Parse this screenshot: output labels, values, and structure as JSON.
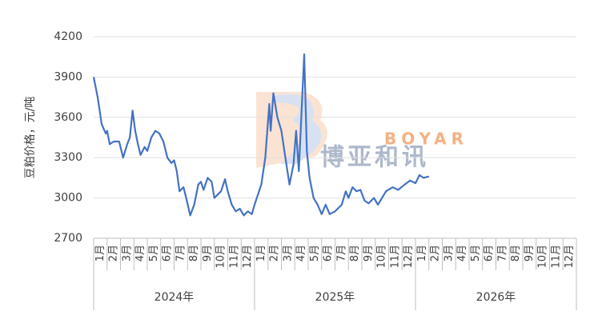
{
  "chart_data": {
    "type": "line",
    "y_label": "豆粕价格，元/吨",
    "watermark": [
      "BOYAR",
      "博亚和讯"
    ],
    "categories": [
      "1月",
      "2月",
      "3月",
      "4月",
      "5月",
      "6月",
      "7月",
      "8月",
      "9月",
      "10月",
      "11月",
      "12月",
      "1月",
      "2月",
      "3月",
      "4月",
      "5月",
      "6月",
      "7月",
      "8月",
      "9月",
      "10月",
      "11月",
      "12月",
      "1月",
      "2月",
      "3月",
      "4月",
      "5月",
      "6月",
      "7月",
      "8月",
      "9月",
      "10月",
      "11月",
      "12月"
    ],
    "groups": [
      {
        "label": "2024年",
        "span": 12
      },
      {
        "label": "2025年",
        "span": 12
      },
      {
        "label": "2026年",
        "span": 12
      }
    ],
    "xlim": [
      0,
      36
    ],
    "ylim": [
      2700,
      4200
    ],
    "yticks": [
      2700,
      3000,
      3300,
      3600,
      3900,
      4200
    ],
    "series": [
      {
        "color": "#4472c4",
        "x": [
          0,
          0.3,
          0.6,
          0.9,
          1.0,
          1.2,
          1.5,
          1.9,
          2.2,
          2.5,
          2.7,
          2.9,
          3.1,
          3.3,
          3.5,
          3.8,
          4.0,
          4.3,
          4.6,
          4.9,
          5.2,
          5.5,
          5.8,
          6.0,
          6.2,
          6.4,
          6.7,
          6.9,
          7.2,
          7.5,
          7.8,
          8.0,
          8.2,
          8.5,
          8.8,
          9.0,
          9.2,
          9.5,
          9.8,
          10.0,
          10.3,
          10.6,
          10.9,
          11.2,
          11.5,
          11.8,
          12.0,
          12.5,
          12.8,
          13.1,
          13.2,
          13.4,
          13.7,
          14.0,
          14.3,
          14.6,
          14.9,
          15.1,
          15.3,
          15.7,
          15.9,
          16.1,
          16.4,
          16.7,
          17.0,
          17.3,
          17.6,
          18.0,
          18.5,
          18.8,
          19.0,
          19.3,
          19.6,
          19.9,
          20.2,
          20.5,
          20.9,
          21.2,
          21.8,
          22.3,
          22.7,
          23.2,
          23.6,
          24.0,
          24.3,
          24.6,
          25.0
        ],
        "values": [
          3900,
          3750,
          3550,
          3480,
          3500,
          3400,
          3420,
          3420,
          3300,
          3400,
          3450,
          3650,
          3500,
          3400,
          3320,
          3380,
          3350,
          3450,
          3500,
          3480,
          3420,
          3300,
          3260,
          3280,
          3200,
          3050,
          3080,
          3000,
          2870,
          2950,
          3100,
          3120,
          3060,
          3150,
          3120,
          3000,
          3020,
          3050,
          3140,
          3050,
          2950,
          2900,
          2920,
          2870,
          2900,
          2880,
          2950,
          3100,
          3300,
          3700,
          3500,
          3780,
          3600,
          3500,
          3300,
          3100,
          3250,
          3500,
          3200,
          4070,
          3350,
          3150,
          3000,
          2950,
          2880,
          2950,
          2880,
          2900,
          2950,
          3050,
          3000,
          3080,
          3050,
          3060,
          2980,
          2960,
          3000,
          2950,
          3050,
          3080,
          3060,
          3100,
          3130,
          3110,
          3170,
          3150,
          3160
        ]
      }
    ]
  }
}
